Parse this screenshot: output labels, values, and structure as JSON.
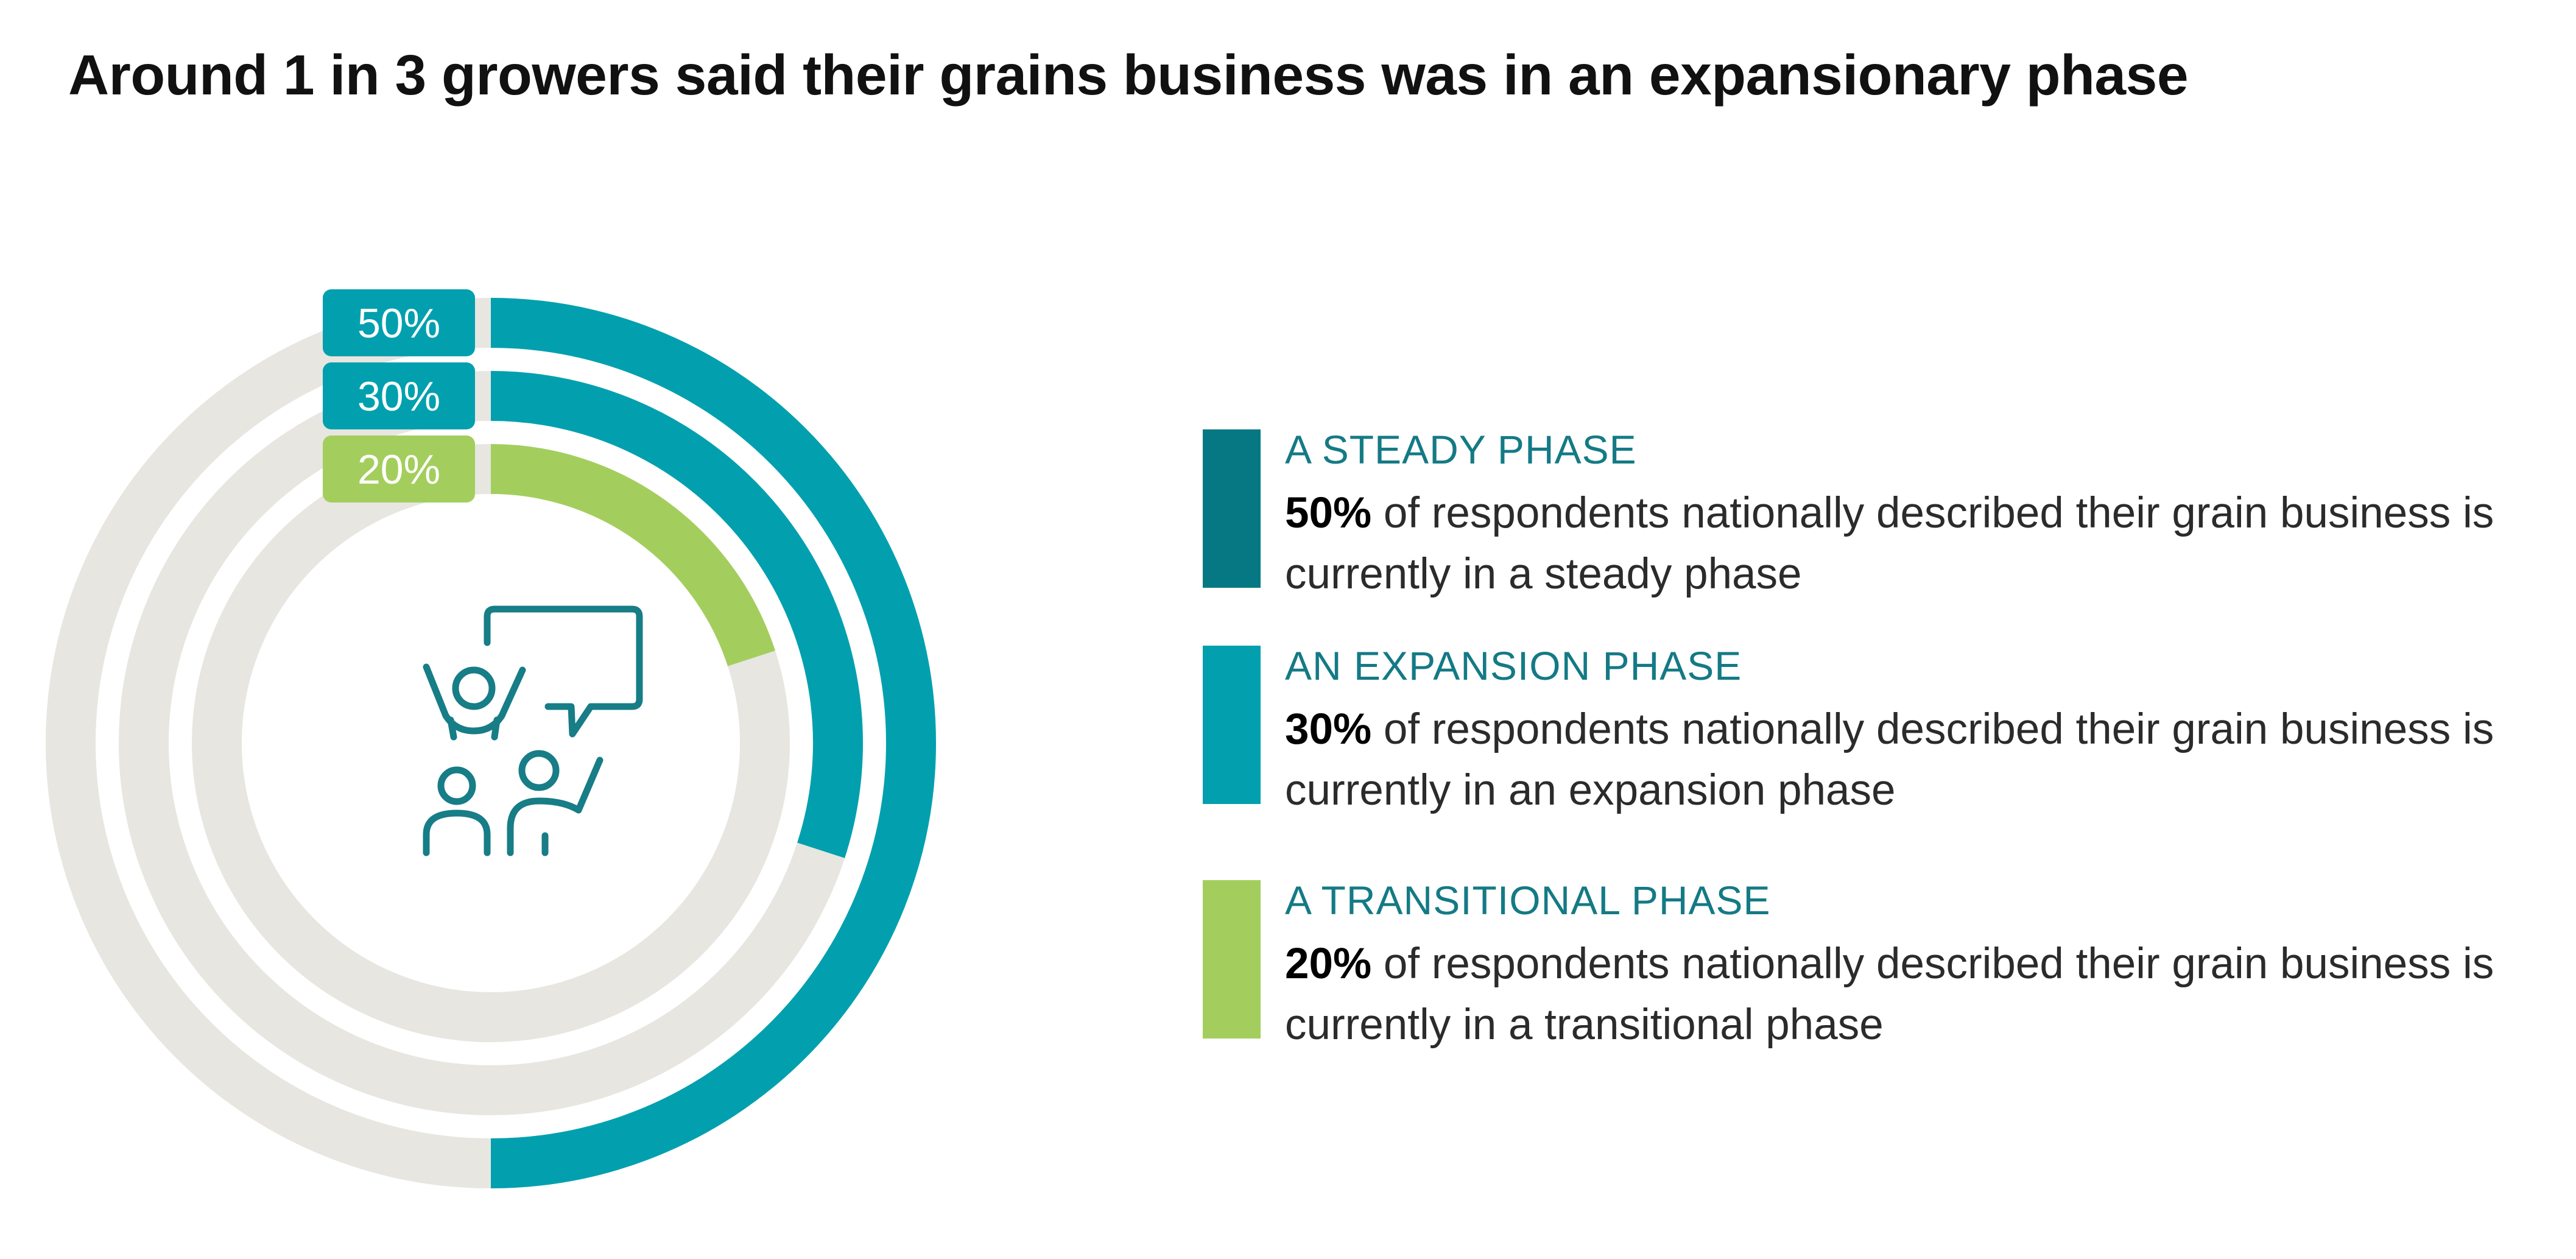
{
  "title": "Around 1 in 3 growers said their grains business was in an expansionary phase",
  "icon": "people-discussion-icon",
  "colors": {
    "track": "#e7e6e1",
    "steady": "#02a0ae",
    "expansion": "#02a0ae",
    "transitional": "#a3ce5d",
    "steady_swatch": "#057883",
    "heading_text": "#147a85",
    "icon_stroke": "#177d86"
  },
  "chart_data": {
    "type": "radial-bar",
    "max": 100,
    "series": [
      {
        "name": "A STEADY PHASE",
        "value": 50,
        "label": "50%",
        "percent_label": "50%",
        "description": "of respondents nationally described their grain business is currently in a steady phase"
      },
      {
        "name": "AN EXPANSION PHASE",
        "value": 30,
        "label": "30%",
        "percent_label": "30%",
        "description": "of respondents nationally described their grain business is currently in an expansion phase"
      },
      {
        "name": "A TRANSITIONAL PHASE",
        "value": 20,
        "label": "20%",
        "percent_label": "20%",
        "description": "of respondents nationally described their grain business is currently in a transitional phase"
      }
    ],
    "legend": "right"
  }
}
